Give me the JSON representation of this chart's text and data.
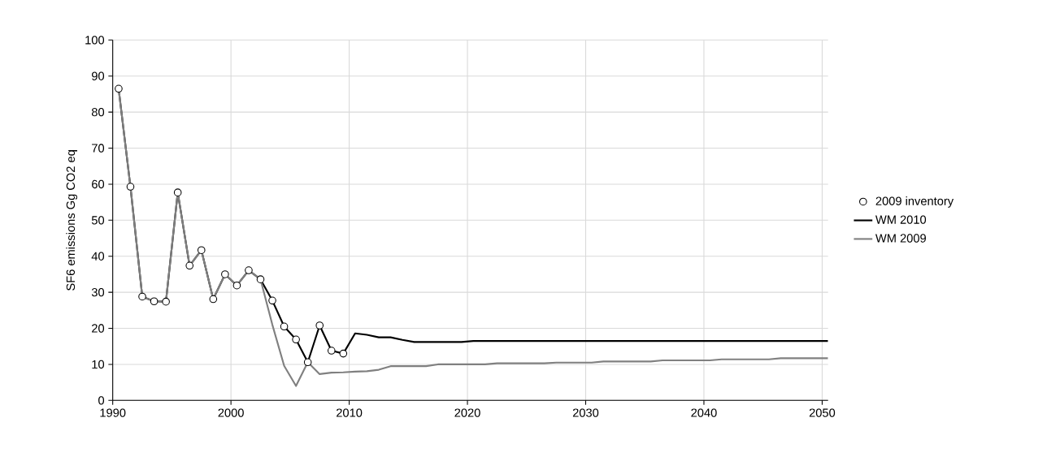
{
  "chart_data": {
    "type": "line",
    "ylabel": "SF6 emissions Gg CO2 eq",
    "xlim": [
      1990,
      2050.5
    ],
    "xticks": [
      1990,
      2000,
      2010,
      2020,
      2030,
      2040,
      2050
    ],
    "ylim": [
      0,
      100
    ],
    "yticks": [
      0,
      10,
      20,
      30,
      40,
      50,
      60,
      70,
      80,
      90,
      100
    ],
    "grid": true,
    "legend": "right",
    "series": [
      {
        "name": "WM 2010",
        "color": "#000000",
        "marker": "none",
        "x": [
          1990.5,
          1991.5,
          1992.5,
          1993.5,
          1994.5,
          1995.5,
          1996.5,
          1997.5,
          1998.5,
          1999.5,
          2000.5,
          2001.5,
          2002.5,
          2003.5,
          2004.5,
          2005.5,
          2006.5,
          2007.5,
          2008.5,
          2009.5,
          2010.5,
          2011.5,
          2012.5,
          2013.5,
          2014.5,
          2015.5,
          2016.5,
          2017.5,
          2018.5,
          2019.5,
          2020.5,
          2021.5,
          2022.5,
          2023.5,
          2024.5,
          2025.5,
          2026.5,
          2027.5,
          2028.5,
          2029.5,
          2030.5,
          2031.5,
          2032.5,
          2033.5,
          2034.5,
          2035.5,
          2036.5,
          2037.5,
          2038.5,
          2039.5,
          2040.5,
          2041.5,
          2042.5,
          2043.5,
          2044.5,
          2045.5,
          2046.5,
          2047.5,
          2048.5,
          2049.5,
          2050.5
        ],
        "values": [
          86.5,
          59.3,
          28.8,
          27.5,
          27.4,
          57.7,
          37.4,
          41.7,
          28.1,
          35.0,
          31.9,
          36.1,
          33.6,
          27.7,
          20.5,
          16.9,
          10.6,
          20.8,
          13.8,
          13.0,
          18.6,
          18.2,
          17.5,
          17.5,
          16.8,
          16.2,
          16.2,
          16.2,
          16.2,
          16.2,
          16.5,
          16.5,
          16.5,
          16.5,
          16.5,
          16.5,
          16.5,
          16.5,
          16.5,
          16.5,
          16.5,
          16.5,
          16.5,
          16.5,
          16.5,
          16.5,
          16.5,
          16.5,
          16.5,
          16.5,
          16.5,
          16.5,
          16.5,
          16.5,
          16.5,
          16.5,
          16.5,
          16.5,
          16.5,
          16.5,
          16.5
        ]
      },
      {
        "name": "WM 2009",
        "color": "#808080",
        "marker": "none",
        "x": [
          1990.5,
          1991.5,
          1992.5,
          1993.5,
          1994.5,
          1995.5,
          1996.5,
          1997.5,
          1998.5,
          1999.5,
          2000.5,
          2001.5,
          2002.5,
          2003.5,
          2004.5,
          2005.5,
          2006.5,
          2007.5,
          2008.5,
          2009.5,
          2010.5,
          2011.5,
          2012.5,
          2013.5,
          2014.5,
          2015.5,
          2016.5,
          2017.5,
          2018.5,
          2019.5,
          2020.5,
          2021.5,
          2022.5,
          2023.5,
          2024.5,
          2025.5,
          2026.5,
          2027.5,
          2028.5,
          2029.5,
          2030.5,
          2031.5,
          2032.5,
          2033.5,
          2034.5,
          2035.5,
          2036.5,
          2037.5,
          2038.5,
          2039.5,
          2040.5,
          2041.5,
          2042.5,
          2043.5,
          2044.5,
          2045.5,
          2046.5,
          2047.5,
          2048.5,
          2049.5,
          2050.5
        ],
        "values": [
          86.5,
          59.3,
          28.8,
          27.5,
          27.4,
          57.7,
          37.4,
          41.7,
          28.1,
          35.0,
          31.9,
          36.1,
          33.6,
          21.0,
          9.6,
          4.0,
          10.6,
          7.3,
          7.7,
          7.8,
          8.0,
          8.1,
          8.5,
          9.5,
          9.5,
          9.5,
          9.5,
          10.0,
          10.0,
          10.0,
          10.0,
          10.0,
          10.3,
          10.3,
          10.3,
          10.3,
          10.3,
          10.5,
          10.5,
          10.5,
          10.5,
          10.8,
          10.8,
          10.8,
          10.8,
          10.8,
          11.1,
          11.1,
          11.1,
          11.1,
          11.1,
          11.4,
          11.4,
          11.4,
          11.4,
          11.4,
          11.7,
          11.7,
          11.7,
          11.7,
          11.7
        ]
      },
      {
        "name": "2009 inventory",
        "type": "scatter",
        "color": "#000000",
        "marker": "circle",
        "x": [
          1990.5,
          1991.5,
          1992.5,
          1993.5,
          1994.5,
          1995.5,
          1996.5,
          1997.5,
          1998.5,
          1999.5,
          2000.5,
          2001.5,
          2002.5,
          2003.5,
          2004.5,
          2005.5,
          2006.5,
          2007.5,
          2008.5,
          2009.5
        ],
        "values": [
          86.5,
          59.3,
          28.8,
          27.5,
          27.4,
          57.7,
          37.4,
          41.7,
          28.1,
          35.0,
          31.9,
          36.1,
          33.6,
          27.7,
          20.5,
          16.9,
          10.6,
          20.8,
          13.8,
          13.0
        ]
      }
    ]
  }
}
